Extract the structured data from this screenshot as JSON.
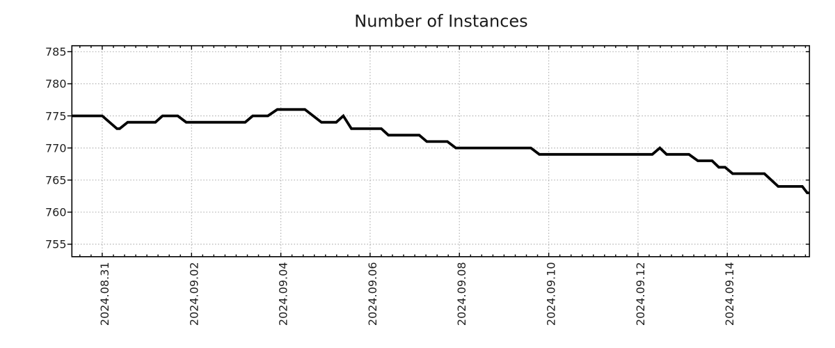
{
  "chart": {
    "title": "Number of Instances",
    "background_color": "#ffffff",
    "text_color": "#1f1f1f",
    "grid_color": "#b0b0b0",
    "axis_color": "#000000",
    "series_color": "#000000"
  },
  "chart_data": {
    "type": "line",
    "title": "Number of Instances",
    "xlabel": "",
    "ylabel": "",
    "legend": false,
    "grid": "dotted",
    "x_unit": "days since 2024-08-30 00:00 (digitized from plot)",
    "x_range": [
      0.32,
      16.84
    ],
    "x_major_ticks": [
      {
        "day": 1,
        "label": "2024.08.31"
      },
      {
        "day": 3,
        "label": "2024.09.02"
      },
      {
        "day": 5,
        "label": "2024.09.04"
      },
      {
        "day": 7,
        "label": "2024.09.06"
      },
      {
        "day": 9,
        "label": "2024.09.08"
      },
      {
        "day": 11,
        "label": "2024.09.10"
      },
      {
        "day": 13,
        "label": "2024.09.12"
      },
      {
        "day": 15,
        "label": "2024.09.14"
      }
    ],
    "x_minor_tick_interval": 0.25,
    "y_ticks": [
      755,
      760,
      765,
      770,
      775,
      780,
      785
    ],
    "y_tick_labels": [
      "755",
      "760",
      "765",
      "770",
      "775",
      "780",
      "785"
    ],
    "y_range": [
      753.1,
      785.9
    ],
    "series": [
      {
        "name": "instances",
        "color": "#000000",
        "points": [
          [
            0.32,
            775
          ],
          [
            1.0,
            775
          ],
          [
            1.33,
            773
          ],
          [
            1.39,
            773
          ],
          [
            1.57,
            774
          ],
          [
            2.19,
            774
          ],
          [
            2.35,
            775
          ],
          [
            2.69,
            775
          ],
          [
            2.88,
            774
          ],
          [
            4.2,
            774
          ],
          [
            4.37,
            775
          ],
          [
            4.71,
            775
          ],
          [
            4.92,
            776
          ],
          [
            5.54,
            776
          ],
          [
            5.91,
            774
          ],
          [
            6.24,
            774
          ],
          [
            6.4,
            775
          ],
          [
            6.58,
            773
          ],
          [
            7.25,
            773
          ],
          [
            7.41,
            772
          ],
          [
            8.1,
            772
          ],
          [
            8.27,
            771
          ],
          [
            8.73,
            771
          ],
          [
            8.92,
            770
          ],
          [
            10.6,
            770
          ],
          [
            10.79,
            769
          ],
          [
            13.32,
            769
          ],
          [
            13.49,
            770
          ],
          [
            13.64,
            769
          ],
          [
            14.14,
            769
          ],
          [
            14.34,
            768
          ],
          [
            14.66,
            768
          ],
          [
            14.81,
            767
          ],
          [
            14.95,
            767
          ],
          [
            15.12,
            766
          ],
          [
            15.83,
            766
          ],
          [
            16.14,
            764
          ],
          [
            16.68,
            764
          ],
          [
            16.79,
            763
          ],
          [
            16.84,
            763
          ]
        ]
      }
    ]
  }
}
